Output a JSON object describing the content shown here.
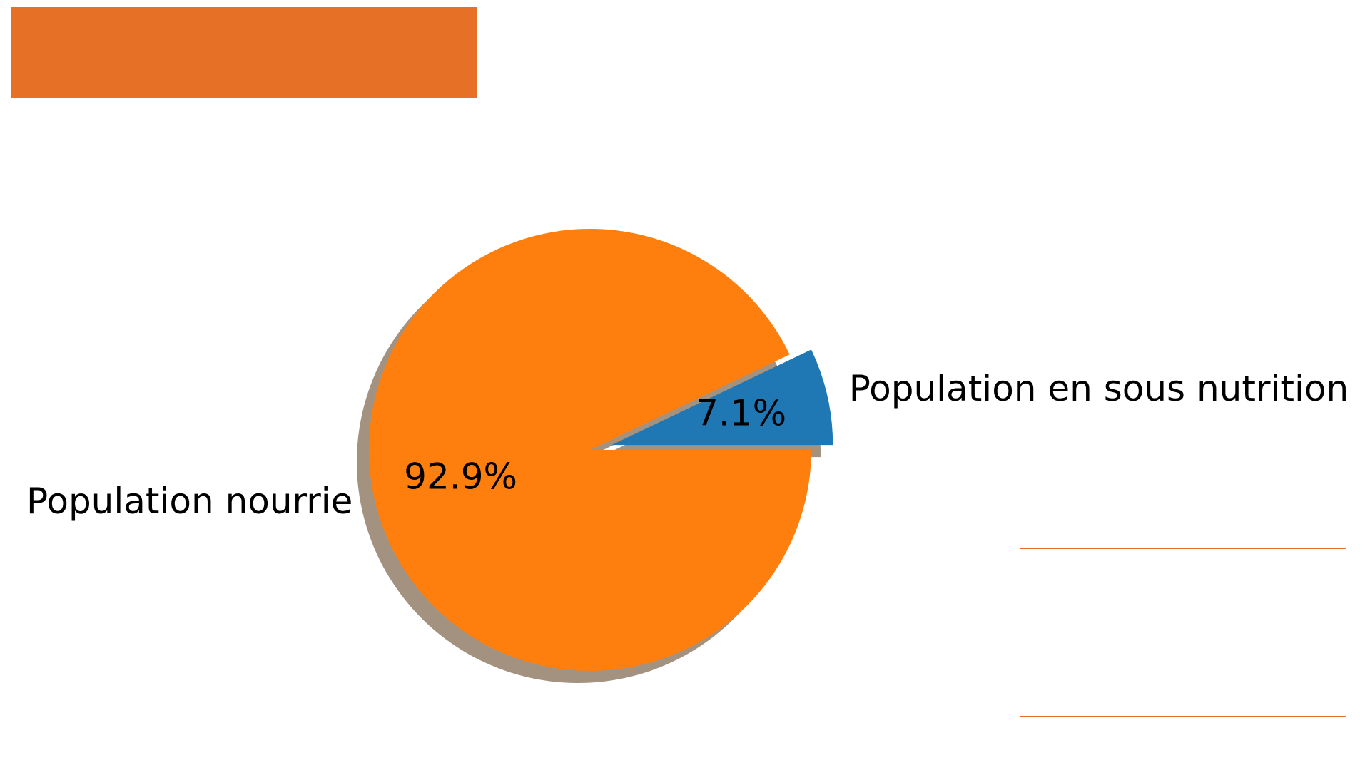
{
  "chart_data": {
    "type": "pie",
    "title": "",
    "slices": [
      {
        "label": "Population en sous nutrition",
        "value": 7.1,
        "pct_label": "7.1%",
        "color": "#1f77b4",
        "exploded": true
      },
      {
        "label": "Population nourrie",
        "value": 92.9,
        "pct_label": "92.9%",
        "color": "#ff7f0e",
        "exploded": false
      }
    ],
    "shadow": true,
    "shadow_color": "#a3927f"
  },
  "colors": {
    "accent": "#e67026"
  }
}
